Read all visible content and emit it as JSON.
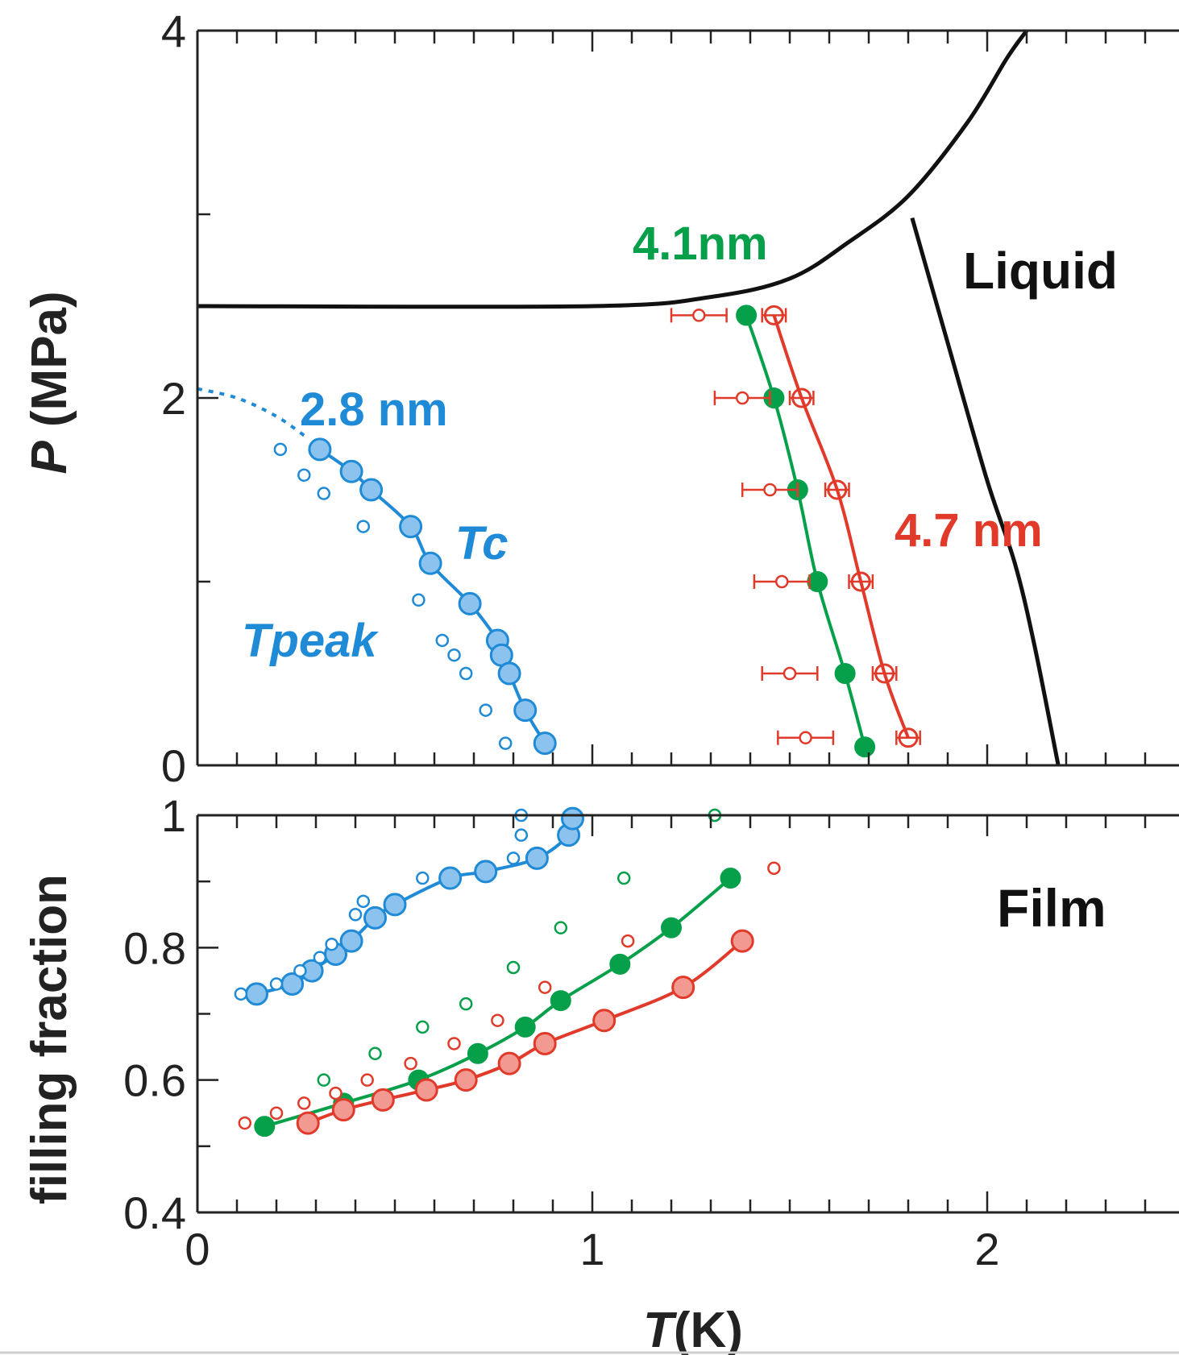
{
  "colors": {
    "blue": "#1f8ad6",
    "blue_fill": "#8cc3ee",
    "green": "#07a04a",
    "red": "#e23a2a",
    "red_fill": "#f29a92",
    "black": "#111111"
  },
  "chart_data": [
    {
      "type": "scatter",
      "panel": "top",
      "xlabel": {
        "italic": "T",
        "unit": "(K)"
      },
      "ylabel": {
        "italic": "P",
        "unit": " (MPa)"
      },
      "xlim": [
        0,
        2.5
      ],
      "ylim": [
        0,
        4
      ],
      "yticks": [
        "0",
        "2",
        "4"
      ],
      "annotations": {
        "blue": "2.8 nm",
        "green": "4.1nm",
        "red": "4.7 nm",
        "liquid": "Liquid",
        "tc": "Tc",
        "tpeak": "Tpeak"
      },
      "boundaries": {
        "solid_liquid": [
          [
            0,
            2.5
          ],
          [
            1.0,
            2.5
          ],
          [
            1.3,
            2.55
          ],
          [
            1.5,
            2.65
          ],
          [
            1.65,
            2.85
          ],
          [
            1.8,
            3.1
          ],
          [
            1.95,
            3.5
          ],
          [
            2.05,
            3.85
          ],
          [
            2.1,
            4.0
          ]
        ],
        "liquid_line": [
          [
            1.81,
            2.98
          ],
          [
            1.9,
            2.3
          ],
          [
            2.0,
            1.55
          ],
          [
            2.07,
            1.1
          ],
          [
            2.12,
            0.65
          ],
          [
            2.18,
            0.0
          ]
        ],
        "blue_dotted_extension": [
          [
            0.0,
            2.05
          ],
          [
            0.1,
            2.0
          ],
          [
            0.2,
            1.9
          ],
          [
            0.28,
            1.78
          ]
        ]
      },
      "series": [
        {
          "key": "blue_tc",
          "label": "Tc",
          "style": "filled-large",
          "color": "blue",
          "line": true,
          "points": [
            [
              0.31,
              1.72
            ],
            [
              0.39,
              1.6
            ],
            [
              0.44,
              1.5
            ],
            [
              0.54,
              1.3
            ],
            [
              0.59,
              1.1
            ],
            [
              0.69,
              0.88
            ],
            [
              0.76,
              0.68
            ],
            [
              0.77,
              0.6
            ],
            [
              0.79,
              0.5
            ],
            [
              0.83,
              0.3
            ],
            [
              0.88,
              0.12
            ]
          ]
        },
        {
          "key": "blue_tpeak",
          "label": "Tpeak",
          "style": "open-small",
          "color": "blue",
          "line": false,
          "points": [
            [
              0.21,
              1.72
            ],
            [
              0.27,
              1.58
            ],
            [
              0.32,
              1.48
            ],
            [
              0.42,
              1.3
            ],
            [
              0.56,
              0.9
            ],
            [
              0.62,
              0.68
            ],
            [
              0.65,
              0.6
            ],
            [
              0.68,
              0.5
            ],
            [
              0.73,
              0.3
            ],
            [
              0.78,
              0.12
            ]
          ]
        },
        {
          "key": "green_filled",
          "label": "4.1nm",
          "style": "filled",
          "color": "green",
          "line": true,
          "points": [
            [
              1.39,
              2.45
            ],
            [
              1.46,
              2.0
            ],
            [
              1.52,
              1.5
            ],
            [
              1.57,
              1.0
            ],
            [
              1.64,
              0.5
            ],
            [
              1.69,
              0.1
            ]
          ]
        },
        {
          "key": "red_square",
          "label": "4.7 nm",
          "style": "open-large-errbar",
          "color": "red",
          "line": true,
          "xerr": 0.03,
          "points": [
            [
              1.46,
              2.45
            ],
            [
              1.53,
              2.0
            ],
            [
              1.62,
              1.5
            ],
            [
              1.68,
              1.0
            ],
            [
              1.74,
              0.5
            ],
            [
              1.8,
              0.15
            ]
          ]
        },
        {
          "key": "red_open",
          "label": "4.7 nm",
          "style": "open-small-errbar",
          "color": "red",
          "line": false,
          "xerr": 0.07,
          "points": [
            [
              1.27,
              2.45
            ],
            [
              1.38,
              2.0
            ],
            [
              1.45,
              1.5
            ],
            [
              1.48,
              1.0
            ],
            [
              1.5,
              0.5
            ],
            [
              1.54,
              0.15
            ]
          ]
        }
      ]
    },
    {
      "type": "scatter",
      "panel": "bottom",
      "xlabel": {
        "italic": "T",
        "unit": "(K)"
      },
      "ylabel": {
        "text": "filling fraction"
      },
      "xlim": [
        0,
        2.5
      ],
      "ylim": [
        0.4,
        1.0
      ],
      "xticks": [
        "0",
        "1",
        "2"
      ],
      "yticks": [
        "0.4",
        "0.6",
        "0.8",
        "1"
      ],
      "annotations": {
        "film": "Film"
      },
      "series": [
        {
          "key": "blue_filled",
          "style": "filled-large",
          "color": "blue",
          "line": true,
          "points": [
            [
              0.15,
              0.73
            ],
            [
              0.24,
              0.745
            ],
            [
              0.29,
              0.765
            ],
            [
              0.35,
              0.79
            ],
            [
              0.39,
              0.81
            ],
            [
              0.45,
              0.845
            ],
            [
              0.5,
              0.865
            ],
            [
              0.64,
              0.905
            ],
            [
              0.73,
              0.915
            ],
            [
              0.86,
              0.935
            ],
            [
              0.94,
              0.97
            ],
            [
              0.95,
              0.995
            ]
          ]
        },
        {
          "key": "blue_open",
          "style": "open-small",
          "color": "blue",
          "line": false,
          "points": [
            [
              0.11,
              0.73
            ],
            [
              0.2,
              0.745
            ],
            [
              0.26,
              0.765
            ],
            [
              0.31,
              0.785
            ],
            [
              0.34,
              0.805
            ],
            [
              0.4,
              0.85
            ],
            [
              0.42,
              0.87
            ],
            [
              0.57,
              0.905
            ],
            [
              0.8,
              0.935
            ],
            [
              0.82,
              0.97
            ],
            [
              0.82,
              1.0
            ],
            [
              1.31,
              1.0
            ]
          ]
        },
        {
          "key": "green_filled",
          "style": "filled",
          "color": "green",
          "line": true,
          "points": [
            [
              0.17,
              0.53
            ],
            [
              0.37,
              0.565
            ],
            [
              0.56,
              0.6
            ],
            [
              0.71,
              0.64
            ],
            [
              0.83,
              0.68
            ],
            [
              0.92,
              0.72
            ],
            [
              1.07,
              0.775
            ],
            [
              1.2,
              0.83
            ],
            [
              1.35,
              0.905
            ]
          ]
        },
        {
          "key": "green_open",
          "style": "open-small",
          "color": "green",
          "line": false,
          "points": [
            [
              0.32,
              0.6
            ],
            [
              0.45,
              0.64
            ],
            [
              0.57,
              0.68
            ],
            [
              0.68,
              0.715
            ],
            [
              0.8,
              0.77
            ],
            [
              0.92,
              0.83
            ],
            [
              1.08,
              0.905
            ],
            [
              1.31,
              1.0
            ]
          ]
        },
        {
          "key": "red_filled",
          "style": "filled-large",
          "color": "red",
          "line": true,
          "points": [
            [
              0.28,
              0.535
            ],
            [
              0.37,
              0.555
            ],
            [
              0.47,
              0.57
            ],
            [
              0.58,
              0.585
            ],
            [
              0.68,
              0.6
            ],
            [
              0.79,
              0.625
            ],
            [
              0.88,
              0.655
            ],
            [
              1.03,
              0.69
            ],
            [
              1.23,
              0.74
            ],
            [
              1.38,
              0.81
            ]
          ]
        },
        {
          "key": "red_open",
          "style": "open-small",
          "color": "red",
          "line": false,
          "points": [
            [
              0.12,
              0.535
            ],
            [
              0.2,
              0.55
            ],
            [
              0.27,
              0.565
            ],
            [
              0.35,
              0.58
            ],
            [
              0.43,
              0.6
            ],
            [
              0.54,
              0.625
            ],
            [
              0.65,
              0.655
            ],
            [
              0.76,
              0.69
            ],
            [
              0.88,
              0.74
            ],
            [
              1.09,
              0.81
            ],
            [
              1.46,
              0.92
            ]
          ]
        }
      ]
    }
  ]
}
